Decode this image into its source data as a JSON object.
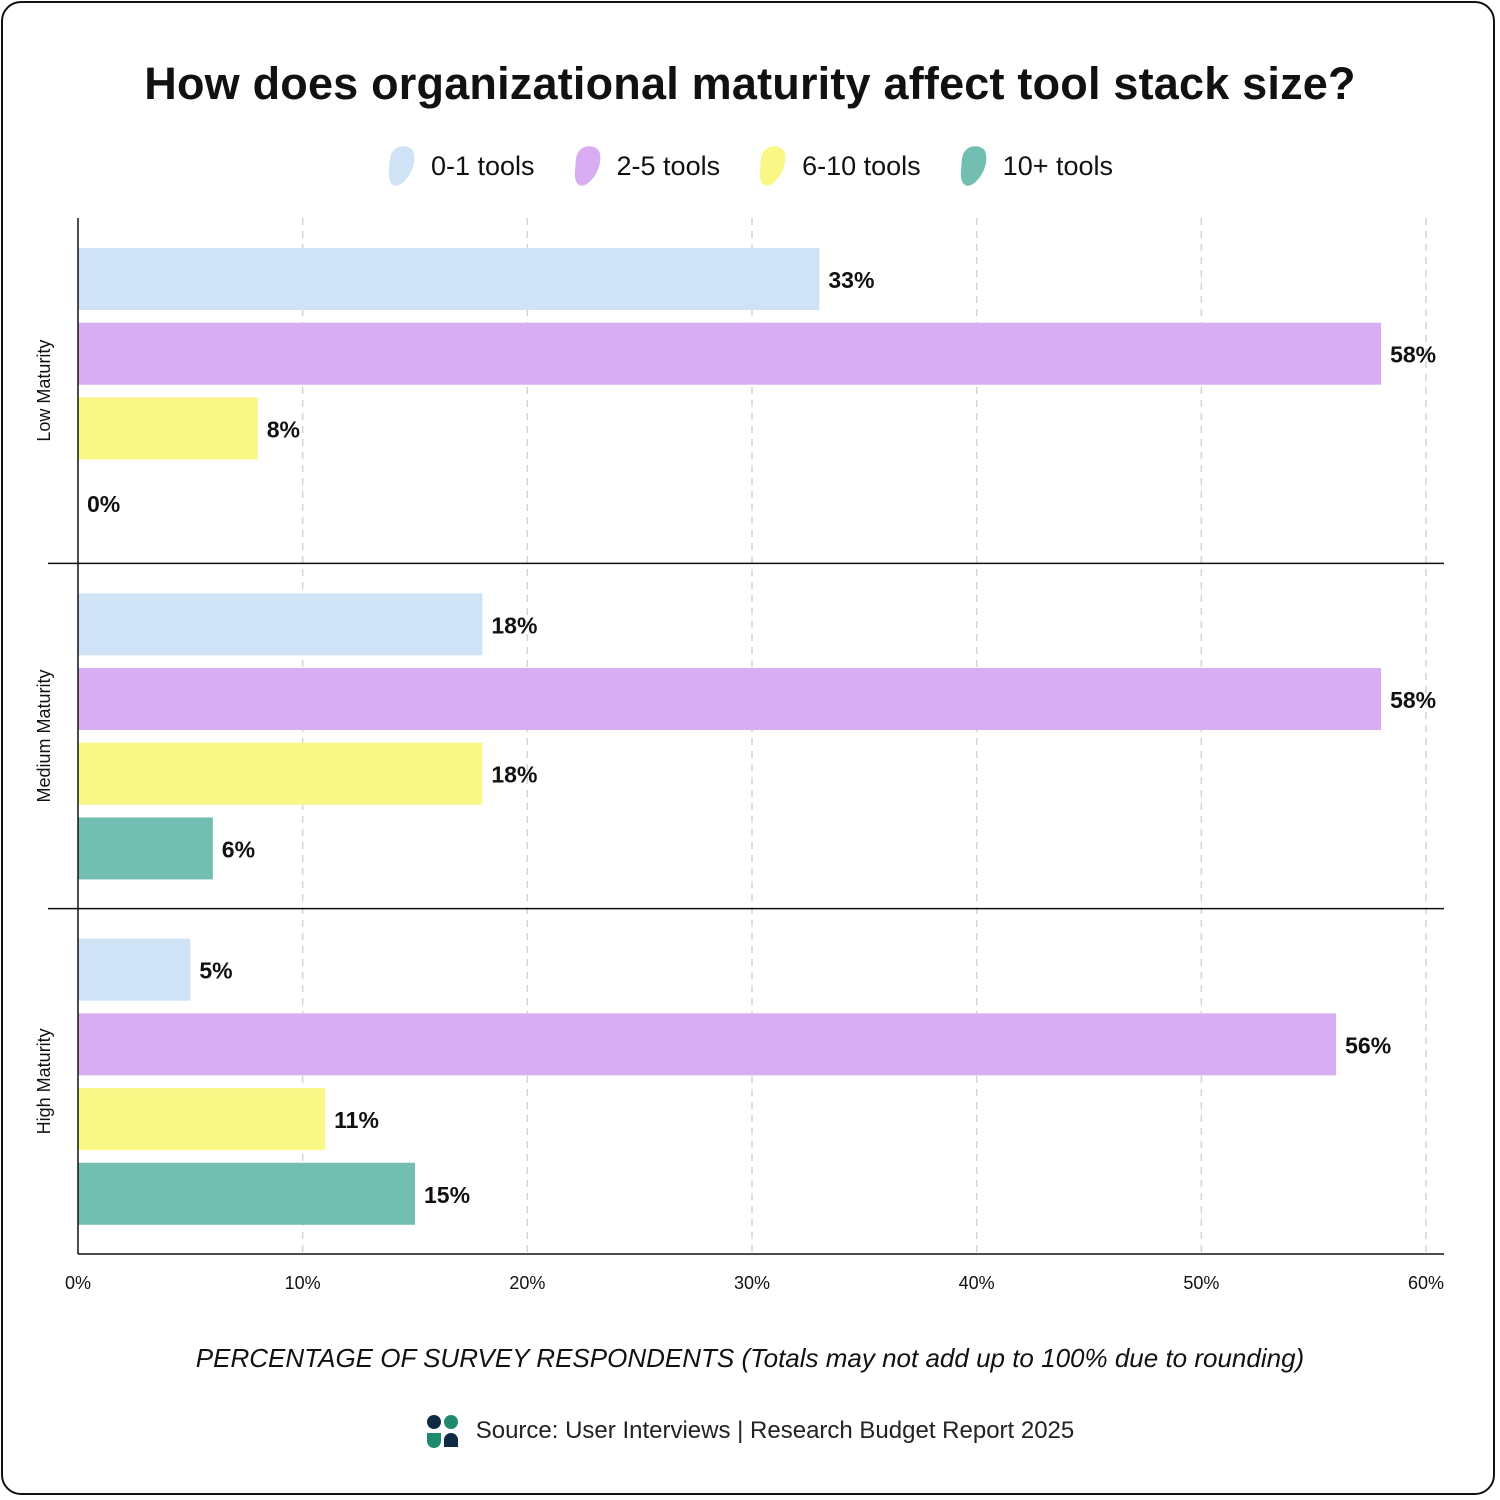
{
  "title": "How does organizational maturity affect tool stack size?",
  "legend": [
    {
      "label": "0-1 tools",
      "color": "#cfe2f6"
    },
    {
      "label": "2-5 tools",
      "color": "#d9adf2"
    },
    {
      "label": "6-10 tools",
      "color": "#f9f886"
    },
    {
      "label": "10+ tools",
      "color": "#72bfb2"
    }
  ],
  "x_axis_title": {
    "main": "PERCENTAGE OF SURVEY RESPONDENTS",
    "note": "(Totals may not add up to 100% due to rounding)"
  },
  "source": "Source: User Interviews | Research Budget Report 2025",
  "chart_data": {
    "type": "bar",
    "orientation": "horizontal",
    "title": "How does organizational maturity affect tool stack size?",
    "categories": [
      "Low Maturity",
      "Medium Maturity",
      "High Maturity"
    ],
    "series": [
      {
        "name": "0-1 tools",
        "values": [
          33,
          18,
          5
        ],
        "labels": [
          "33%",
          "18%",
          "5%"
        ],
        "color": "#cfe2f6"
      },
      {
        "name": "2-5 tools",
        "values": [
          58,
          58,
          56
        ],
        "labels": [
          "58%",
          "58%",
          "56%"
        ],
        "color": "#d9adf2"
      },
      {
        "name": "6-10 tools",
        "values": [
          8,
          18,
          11
        ],
        "labels": [
          "8%",
          "18%",
          "11%"
        ],
        "color": "#f9f886"
      },
      {
        "name": "10+ tools",
        "values": [
          0,
          6,
          15
        ],
        "labels": [
          "0%",
          "6%",
          "15%"
        ],
        "color": "#72bfb2"
      }
    ],
    "xlabel": "PERCENTAGE OF SURVEY RESPONDENTS (Totals may not add up to 100% due to rounding)",
    "ylabel": "",
    "xlim": [
      0,
      60
    ],
    "xticks": [
      0,
      10,
      20,
      30,
      40,
      50,
      60
    ],
    "xtick_labels": [
      "0%",
      "10%",
      "20%",
      "30%",
      "40%",
      "50%",
      "60%"
    ],
    "grid": "vertical dashed",
    "legend_position": "top-center"
  }
}
